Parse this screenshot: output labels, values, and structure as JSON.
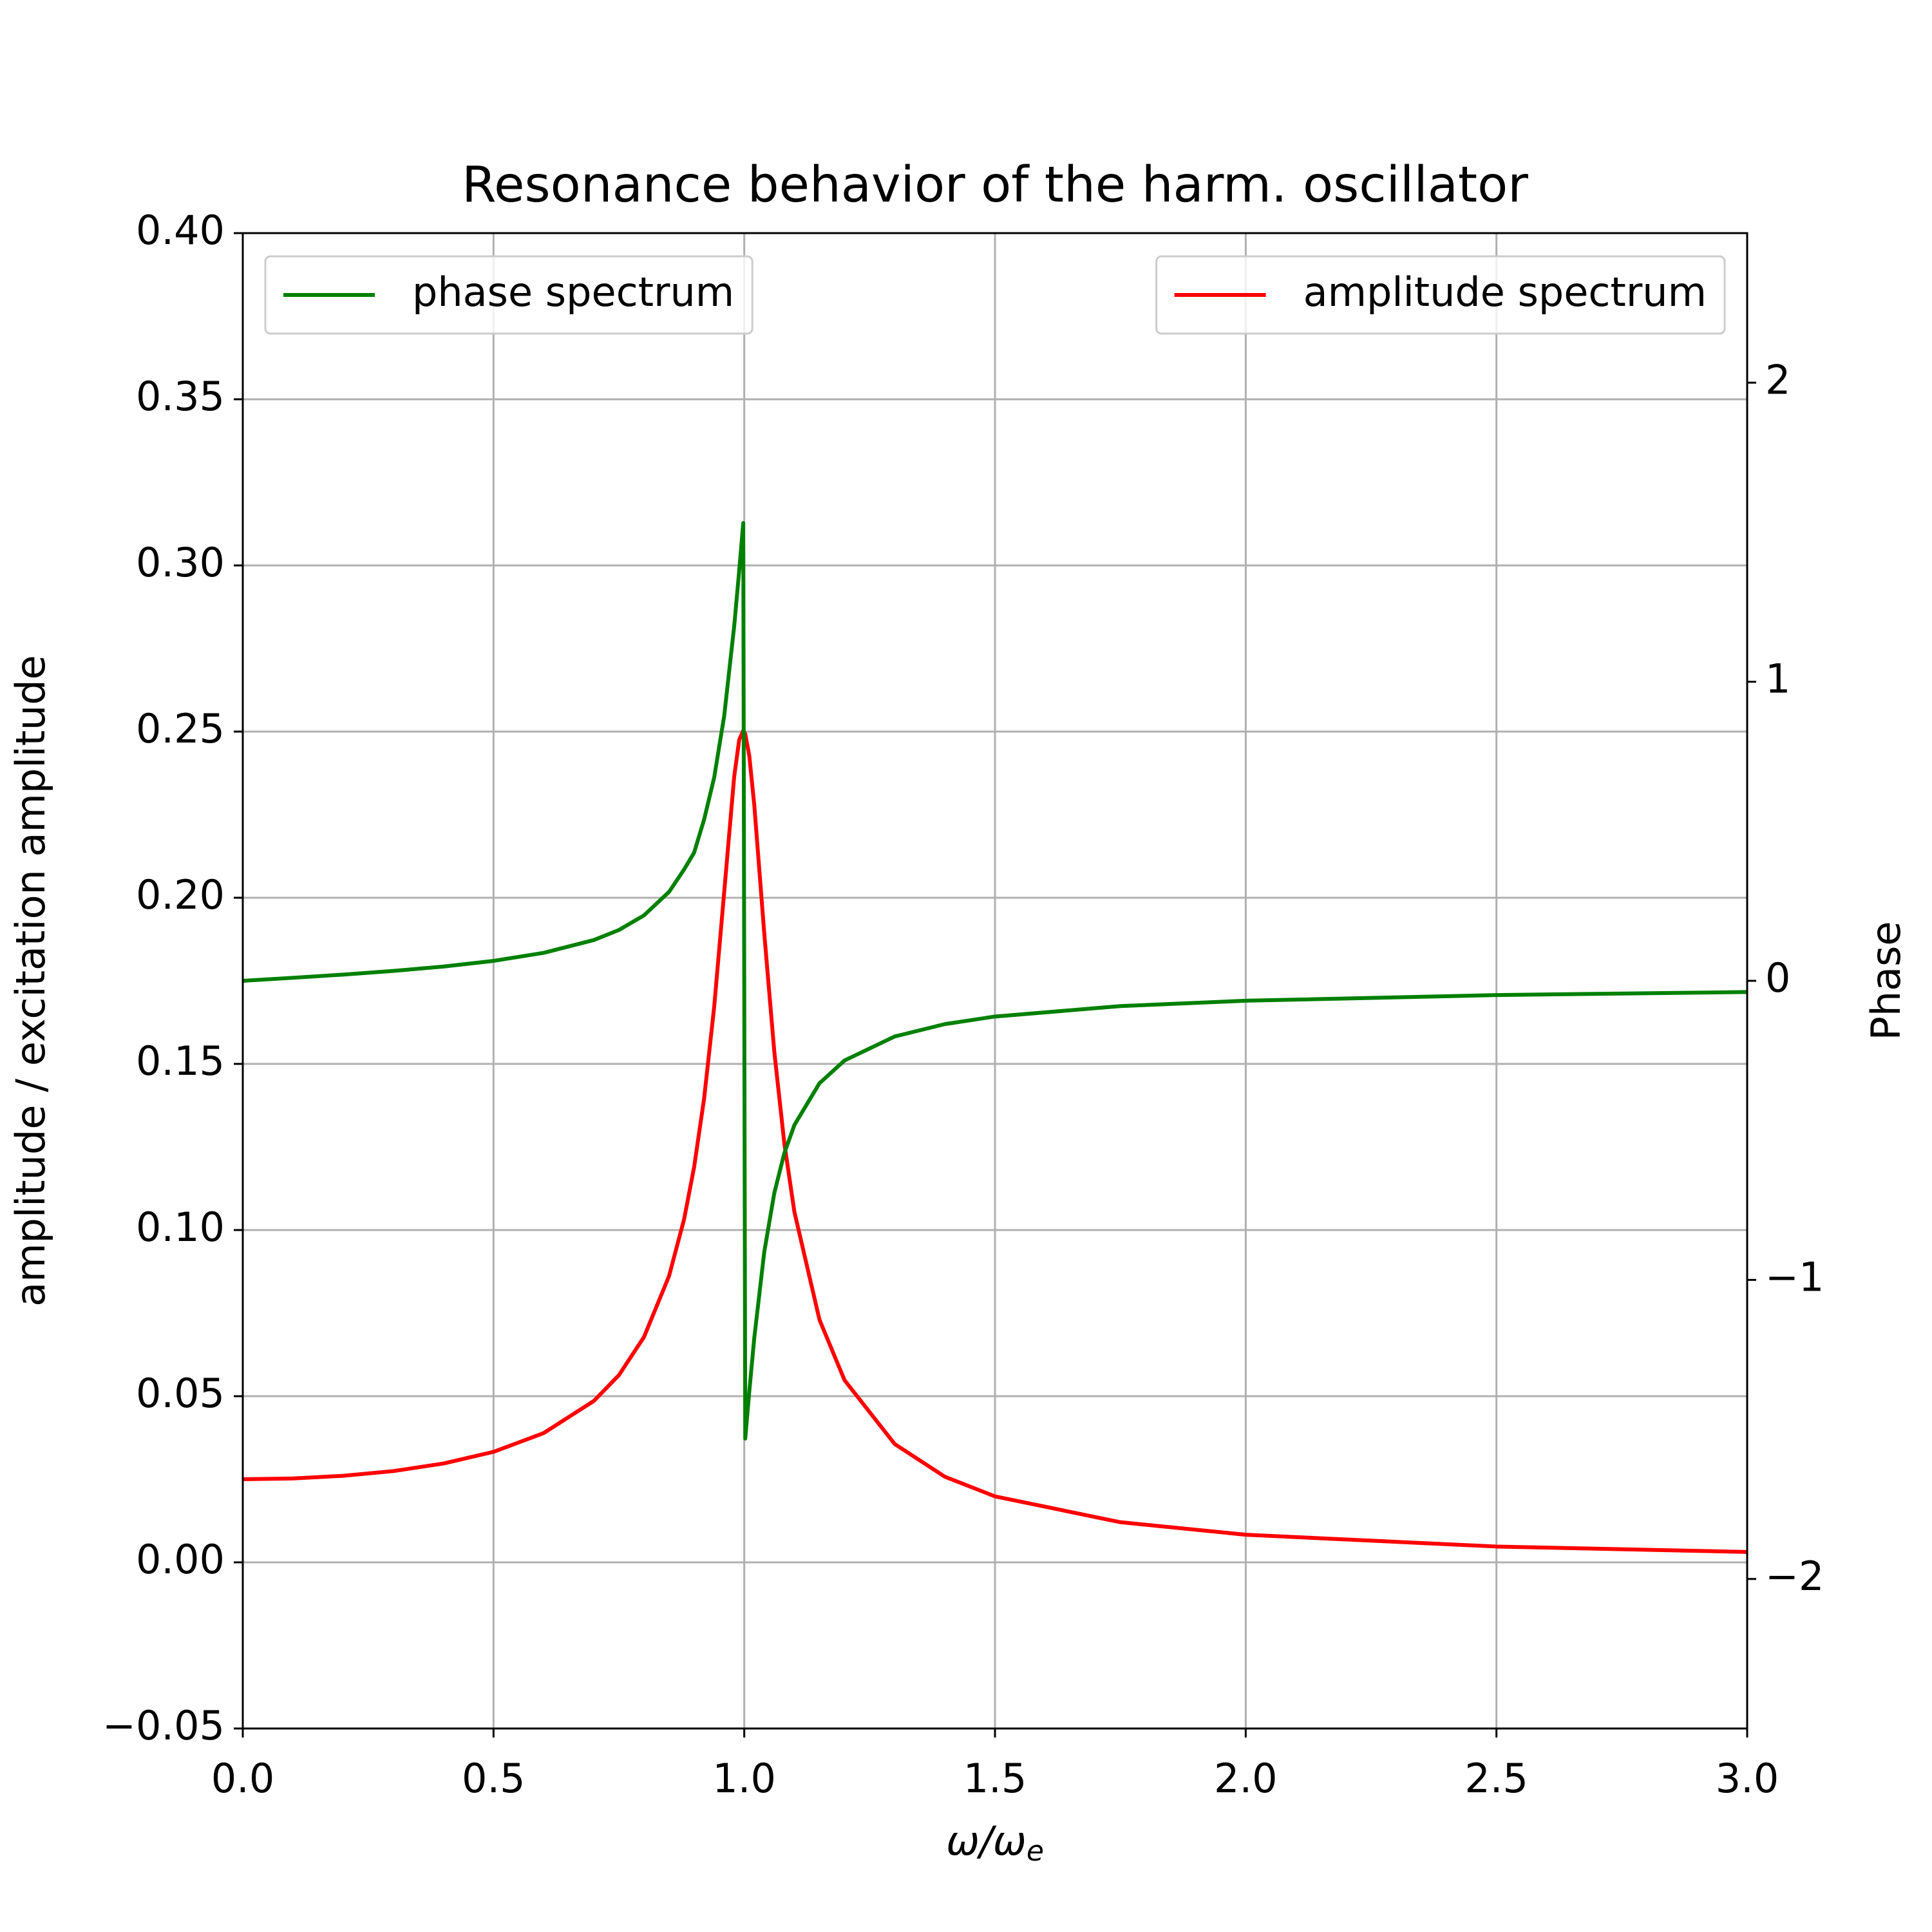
{
  "chart_data": {
    "type": "line",
    "title": "Resonance behavior of the harm. oscillator",
    "xlabel": "ω/ω",
    "xlabel_subscript": "e",
    "ylabel": "amplitude / excitation amplitude",
    "y2label": "Phase",
    "x": [
      0,
      0.1,
      0.2,
      0.3,
      0.4,
      0.5,
      0.6,
      0.7,
      0.75,
      0.8,
      0.85,
      0.88,
      0.9,
      0.92,
      0.94,
      0.96,
      0.98,
      0.99,
      0.998,
      1.002,
      1.01,
      1.02,
      1.04,
      1.06,
      1.08,
      1.1,
      1.15,
      1.2,
      1.3,
      1.4,
      1.5,
      1.75,
      2.0,
      2.5,
      3.0
    ],
    "series": [
      {
        "name": "amplitude spectrum",
        "color": "#ff0000",
        "axis": "y",
        "legend_loc": "upper right",
        "values": [
          0.025,
          0.02525,
          0.02604,
          0.02746,
          0.02973,
          0.03326,
          0.03889,
          0.04856,
          0.05632,
          0.06779,
          0.08614,
          0.10324,
          0.11891,
          0.13963,
          0.16709,
          0.2017,
          0.23653,
          0.24757,
          0.2503,
          0.2493,
          0.24277,
          0.22788,
          0.18912,
          0.15353,
          0.12602,
          0.10546,
          0.07302,
          0.05482,
          0.03561,
          0.02577,
          0.01986,
          0.01208,
          0.00831,
          0.00476,
          0.00312
        ]
      },
      {
        "name": "phase spectrum",
        "color": "#008000",
        "axis": "y2",
        "legend_loc": "upper left",
        "values": [
          0,
          0.0101,
          0.0208,
          0.033,
          0.0476,
          0.0666,
          0.0935,
          0.1364,
          0.1698,
          0.2187,
          0.2973,
          0.3722,
          0.4284,
          0.5396,
          0.6795,
          0.8856,
          1.1868,
          1.3724,
          1.5308,
          -1.5308,
          -1.3743,
          -1.1936,
          -0.9054,
          -0.7089,
          -0.5759,
          -0.4823,
          -0.3425,
          -0.2663,
          -0.1862,
          -0.1448,
          -0.1194,
          -0.0846,
          -0.0666,
          -0.0476,
          -0.0375
        ]
      }
    ],
    "xlim": [
      0,
      3
    ],
    "xticks": [
      {
        "value": 0,
        "label": "0.0"
      },
      {
        "value": 0.5,
        "label": "0.5"
      },
      {
        "value": 1,
        "label": "1.0"
      },
      {
        "value": 1.5,
        "label": "1.5"
      },
      {
        "value": 2,
        "label": "2.0"
      },
      {
        "value": 2.5,
        "label": "2.5"
      },
      {
        "value": 3,
        "label": "3.0"
      }
    ],
    "ylim": [
      -0.05,
      0.4
    ],
    "yticks": [
      {
        "value": -0.05,
        "label": "−0.05"
      },
      {
        "value": 0,
        "label": "0.00"
      },
      {
        "value": 0.05,
        "label": "0.05"
      },
      {
        "value": 0.1,
        "label": "0.10"
      },
      {
        "value": 0.15,
        "label": "0.15"
      },
      {
        "value": 0.2,
        "label": "0.20"
      },
      {
        "value": 0.25,
        "label": "0.25"
      },
      {
        "value": 0.3,
        "label": "0.30"
      },
      {
        "value": 0.35,
        "label": "0.35"
      },
      {
        "value": 0.4,
        "label": "0.40"
      }
    ],
    "y2lim": [
      -2.5,
      2.5
    ],
    "y2ticks": [
      {
        "value": -2,
        "label": "−2"
      },
      {
        "value": -1,
        "label": "−1"
      },
      0,
      1,
      2
    ],
    "grid": true
  }
}
